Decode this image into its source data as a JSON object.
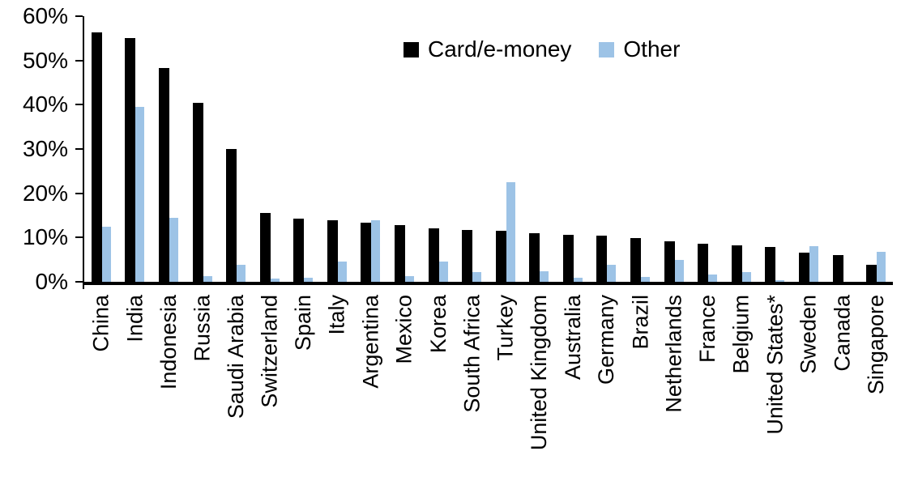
{
  "legend": {
    "items": [
      {
        "label": "Card/e-money",
        "color": "#000000"
      },
      {
        "label": "Other",
        "color": "#9DC3E6"
      }
    ]
  },
  "chart_data": {
    "type": "bar",
    "title": "",
    "xlabel": "",
    "ylabel": "",
    "categories": [
      "China",
      "India",
      "Indonesia",
      "Russia",
      "Saudi Arabia",
      "Switzerland",
      "Spain",
      "Italy",
      "Argentina",
      "Mexico",
      "Korea",
      "South Africa",
      "Turkey",
      "United Kingdom",
      "Australia",
      "Germany",
      "Brazil",
      "Netherlands",
      "France",
      "Belgium",
      "United States*",
      "Sweden",
      "Canada",
      "Singapore"
    ],
    "series": [
      {
        "name": "Card/e-money",
        "color": "#000000",
        "values": [
          56.3,
          55.1,
          48.3,
          40.4,
          30.0,
          15.6,
          14.2,
          14.0,
          13.4,
          12.8,
          12.1,
          11.7,
          11.5,
          11.0,
          10.7,
          10.5,
          9.8,
          9.2,
          8.6,
          8.2,
          7.9,
          6.6,
          6.1,
          3.9
        ]
      },
      {
        "name": "Other",
        "color": "#9DC3E6",
        "values": [
          12.4,
          39.6,
          14.5,
          1.2,
          3.9,
          0.8,
          1.0,
          4.6,
          13.9,
          1.3,
          4.5,
          2.2,
          22.5,
          2.3,
          1.0,
          3.9,
          1.1,
          4.9,
          1.6,
          2.2,
          0.4,
          8.1,
          0.0,
          6.8
        ]
      }
    ],
    "ylim": [
      0,
      60
    ],
    "ytick_interval": 10,
    "ytick_labels": [
      "0%",
      "10%",
      "20%",
      "30%",
      "40%",
      "50%",
      "60%"
    ],
    "grid": false,
    "legend_position": "top-center",
    "bar_label_rotation": -90
  }
}
